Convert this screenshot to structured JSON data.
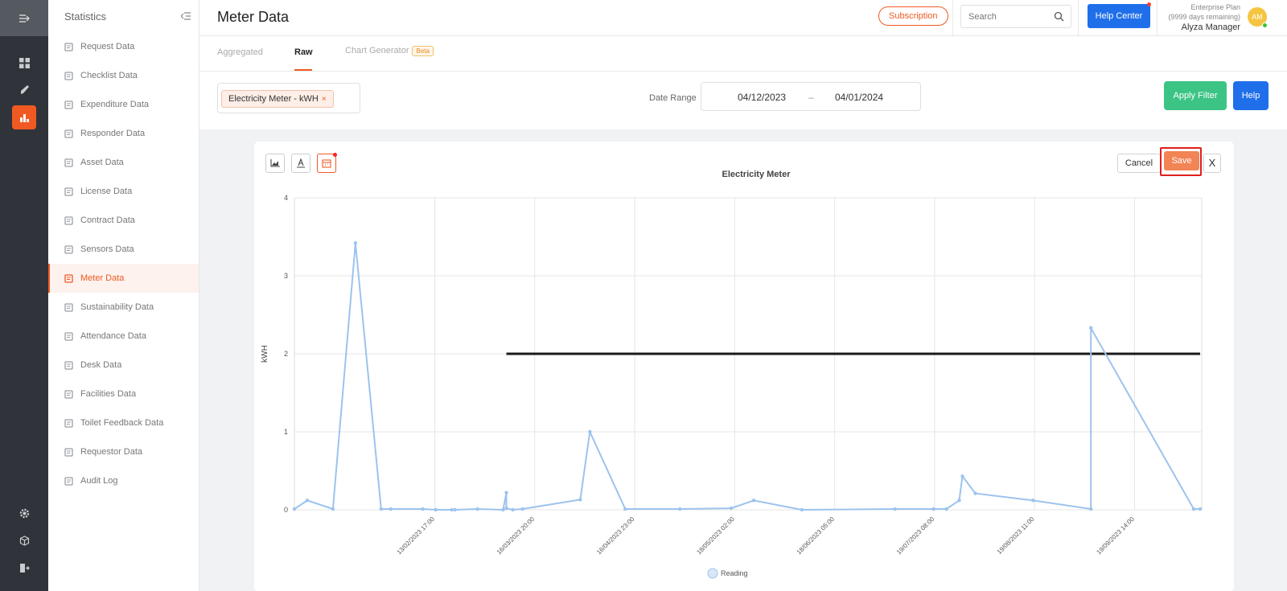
{
  "app": {
    "page_title": "Meter Data"
  },
  "header": {
    "subscription_label": "Subscription",
    "search_placeholder": "Search",
    "help_center_label": "Help Center",
    "plan_name": "Enterprise Plan",
    "plan_remaining": "(9999 days remaining)",
    "user_name": "Alyza Manager",
    "avatar_initials": "AM"
  },
  "rail": {
    "icons": [
      "menu-expand-icon",
      "dashboard-icon",
      "rocket-icon",
      "statistics-icon",
      "settings-icon",
      "cube-icon",
      "logout-icon"
    ],
    "active": "statistics-icon",
    "accent": "#f05a22"
  },
  "sidebar": {
    "title": "Statistics",
    "items": [
      {
        "label": "Request Data",
        "icon": "request-icon"
      },
      {
        "label": "Checklist Data",
        "icon": "checklist-icon"
      },
      {
        "label": "Expenditure Data",
        "icon": "expenditure-icon"
      },
      {
        "label": "Responder Data",
        "icon": "responder-icon"
      },
      {
        "label": "Asset Data",
        "icon": "asset-icon"
      },
      {
        "label": "License Data",
        "icon": "license-icon"
      },
      {
        "label": "Contract Data",
        "icon": "contract-icon"
      },
      {
        "label": "Sensors Data",
        "icon": "sensors-icon"
      },
      {
        "label": "Meter Data",
        "icon": "meter-icon",
        "active": true
      },
      {
        "label": "Sustainability Data",
        "icon": "sustainability-icon"
      },
      {
        "label": "Attendance Data",
        "icon": "attendance-icon"
      },
      {
        "label": "Desk Data",
        "icon": "desk-icon"
      },
      {
        "label": "Facilities Data",
        "icon": "facilities-icon"
      },
      {
        "label": "Toilet Feedback Data",
        "icon": "toilet-feedback-icon"
      },
      {
        "label": "Requestor Data",
        "icon": "requestor-icon"
      },
      {
        "label": "Audit Log",
        "icon": "audit-log-icon"
      }
    ]
  },
  "tabs": {
    "aggregated": "Aggregated",
    "raw": "Raw",
    "chart_generator": "Chart Generator",
    "beta": "Beta",
    "active": "Raw"
  },
  "filter": {
    "meter_chip": "Electricity Meter - kWH",
    "chip_remove": "×",
    "date_range_label": "Date Range",
    "date_from": "04/12/2023",
    "date_sep": "–",
    "date_to": "04/01/2024",
    "apply_label": "Apply Filter",
    "help_label": "Help"
  },
  "chart_toolbar": {
    "tools": [
      "chart-icon",
      "text-icon",
      "calendar-icon"
    ],
    "cancel_label": "Cancel",
    "save_label": "Save",
    "close_label": "X"
  },
  "chart_data": {
    "type": "line",
    "title": "Electricity Meter",
    "ylabel": "kWH",
    "xlabel": "",
    "ylim": [
      0,
      4
    ],
    "yticks": [
      0,
      1,
      2,
      3,
      4
    ],
    "x_range": [
      "2023-01-01T00:00",
      "2023-10-10T12:00"
    ],
    "xtick_labels": [
      {
        "date": "2023-02-13T17:00",
        "label": "13/02/2023 17:00"
      },
      {
        "date": "2023-03-16T20:00",
        "label": "16/03/2023 20:00"
      },
      {
        "date": "2023-04-16T23:00",
        "label": "16/04/2023 23:00"
      },
      {
        "date": "2023-05-18T02:00",
        "label": "18/05/2023 02:00"
      },
      {
        "date": "2023-06-18T05:00",
        "label": "18/06/2023 05:00"
      },
      {
        "date": "2023-07-19T08:00",
        "label": "19/07/2023 08:00"
      },
      {
        "date": "2023-08-19T11:00",
        "label": "19/08/2023 11:00"
      },
      {
        "date": "2023-09-19T14:00",
        "label": "19/09/2023 14:00"
      }
    ],
    "grid": true,
    "legend": "bottom",
    "series": [
      {
        "name": "Reading",
        "color": "#9dc3ee",
        "points": [
          [
            "2023-01-01",
            0.01
          ],
          [
            "2023-01-05",
            0.12
          ],
          [
            "2023-01-13",
            0.01
          ],
          [
            "2023-01-20",
            3.42
          ],
          [
            "2023-01-28",
            0.01
          ],
          [
            "2023-01-31",
            0.01
          ],
          [
            "2023-02-10",
            0.01
          ],
          [
            "2023-02-14",
            0.0
          ],
          [
            "2023-02-19",
            0.0
          ],
          [
            "2023-02-20",
            0.0
          ],
          [
            "2023-02-27",
            0.01
          ],
          [
            "2023-03-07",
            0.0
          ],
          [
            "2023-03-08",
            0.22
          ],
          [
            "2023-03-08",
            0.02
          ],
          [
            "2023-03-10",
            0.0
          ],
          [
            "2023-03-13",
            0.01
          ],
          [
            "2023-03-31",
            0.13
          ],
          [
            "2023-04-03",
            1.0
          ],
          [
            "2023-04-14",
            0.01
          ],
          [
            "2023-05-01",
            0.01
          ],
          [
            "2023-05-17",
            0.02
          ],
          [
            "2023-05-24",
            0.12
          ],
          [
            "2023-06-08",
            0.0
          ],
          [
            "2023-07-07",
            0.01
          ],
          [
            "2023-07-19",
            0.01
          ],
          [
            "2023-07-19",
            0.01
          ],
          [
            "2023-07-23",
            0.01
          ],
          [
            "2023-07-27",
            0.12
          ],
          [
            "2023-07-28",
            0.43
          ],
          [
            "2023-08-01",
            0.21
          ],
          [
            "2023-08-19",
            0.12
          ],
          [
            "2023-09-06",
            0.01
          ],
          [
            "2023-09-06",
            2.33
          ],
          [
            "2023-10-08",
            0.01
          ],
          [
            "2023-10-10",
            0.01
          ]
        ]
      }
    ],
    "threshold": {
      "value": 2,
      "from": "2023-03-08",
      "to": "2023-10-10",
      "color": "#1a1a1a"
    }
  }
}
